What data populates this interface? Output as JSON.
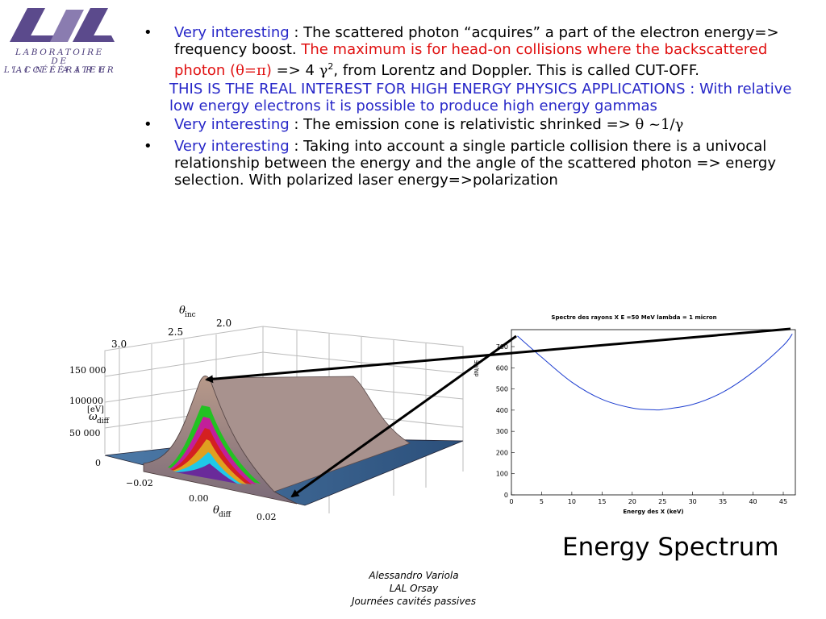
{
  "logo": {
    "mark": "LAL",
    "line1": "LABORATOIRE",
    "line2": "DE L'ACCÉLÉRATEUR",
    "line3": "L I N É A I R E"
  },
  "bullets": {
    "b1_lead": "Very interesting",
    "b1_text1": " : The scattered photon “acquires” a part of the electron energy=> frequency boost. ",
    "b1_red": "The maximum is for head-on collisions where the backscattered photon (",
    "b1_red_sym": "θ=π",
    "b1_red_end": ")",
    "b1_text2": " => 4 ",
    "b1_gamma": "γ",
    "b1_exp": "2",
    "b1_text3": ", from Lorentz and Doppler. This is called CUT-OFF.",
    "note": "THIS IS THE REAL INTEREST FOR HIGH ENERGY PHYSICS APPLICATIONS : With relative low energy electrons it is possible to produce high energy gammas",
    "b2_lead": "Very interesting",
    "b2_text": " : The emission cone is relativistic shrinked => ",
    "b2_sym": "θ ~1/γ",
    "b3_lead": "Very interesting",
    "b3_text": " : Taking into account a single particle collision there is a univocal relationship between the energy and the angle of the scattered photon => energy selection. With polarized laser energy=>polarization"
  },
  "plot3d": {
    "theta_inc_label": "θ",
    "theta_inc_sub": "inc",
    "theta_ticks": [
      "3.0",
      "2.5",
      "2.0"
    ],
    "omega_label": "ω",
    "omega_sub": "diff",
    "omega_unit": "[eV]",
    "omega_ticks": [
      "150 000",
      "100000",
      "50 000",
      "0"
    ],
    "theta_diff_label": "θ",
    "theta_diff_sub": "diff",
    "diff_ticks": [
      "−0.02",
      "0.00",
      "0.02"
    ]
  },
  "chart_data": {
    "type": "line",
    "title": "Spectre des rayons X E =50 MeV lambda = 1 micron",
    "xlabel": "Energy des X (keV)",
    "ylabel": "dN/dE",
    "xlim": [
      0,
      47
    ],
    "ylim": [
      0,
      780
    ],
    "xticks": [
      0,
      5,
      10,
      15,
      20,
      25,
      30,
      35,
      40,
      45
    ],
    "yticks": [
      0,
      100,
      200,
      300,
      400,
      500,
      600,
      700
    ],
    "x": [
      1,
      5,
      10,
      15,
      20,
      23.5,
      25,
      30,
      35,
      40,
      45,
      46.5
    ],
    "y": [
      750,
      650,
      532,
      451,
      410,
      402,
      403,
      427,
      485,
      580,
      705,
      760
    ]
  },
  "caption": "Energy Spectrum",
  "footer": {
    "author": "Alessandro Variola",
    "institute": "LAL Orsay",
    "event": "Journées cavités passives"
  }
}
